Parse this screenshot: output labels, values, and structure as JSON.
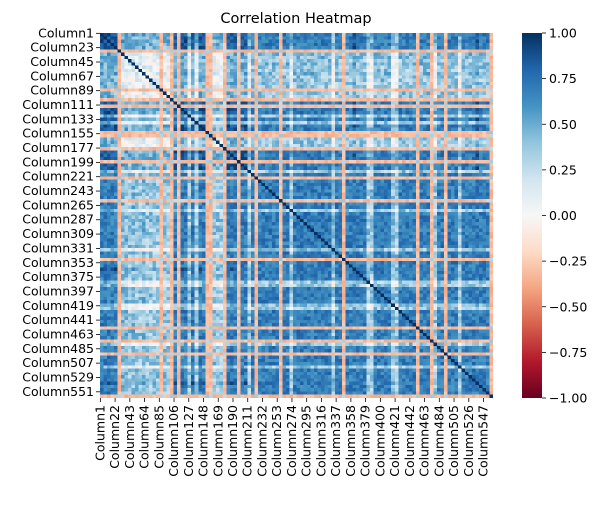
{
  "chart_data": {
    "type": "heatmap",
    "title": "Correlation Heatmap",
    "xlabel": "",
    "ylabel": "",
    "colormap": "RdBu",
    "colors": {
      "low": "#67001f",
      "mid": "#f7f7f7",
      "high": "#053061"
    },
    "vmin": -1.0,
    "vmax": 1.0,
    "colorbar_ticks": [
      1.0,
      0.75,
      0.5,
      0.25,
      0.0,
      -0.25,
      -0.5,
      -0.75,
      -1.0
    ],
    "colorbar_tick_labels": [
      "1.00",
      "0.75",
      "0.50",
      "0.25",
      "0.00",
      "−0.25",
      "−0.50",
      "−0.75",
      "−1.00"
    ],
    "n_columns": 560,
    "y_tick_labels": [
      "Column1",
      "Column23",
      "Column45",
      "Column67",
      "Column89",
      "Column111",
      "Column133",
      "Column155",
      "Column177",
      "Column199",
      "Column221",
      "Column243",
      "Column265",
      "Column287",
      "Column309",
      "Column331",
      "Column353",
      "Column375",
      "Column397",
      "Column419",
      "Column441",
      "Column463",
      "Column485",
      "Column507",
      "Column529",
      "Column551"
    ],
    "x_tick_labels": [
      "Column1",
      "Column22",
      "Column43",
      "Column64",
      "Column85",
      "Column106",
      "Column127",
      "Column148",
      "Column169",
      "Column190",
      "Column211",
      "Column232",
      "Column253",
      "Column274",
      "Column295",
      "Column316",
      "Column337",
      "Column358",
      "Column379",
      "Column400",
      "Column421",
      "Column442",
      "Column463",
      "Column484",
      "Column505",
      "Column526",
      "Column547"
    ],
    "diagonal_value": 1.0
  }
}
